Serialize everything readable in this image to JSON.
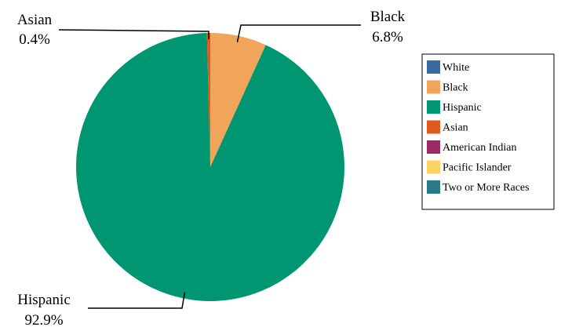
{
  "chart_data": {
    "type": "pie",
    "title": "",
    "categories": [
      "White",
      "Black",
      "Hispanic",
      "Asian",
      "American Indian",
      "Pacific Islander",
      "Two or More Races"
    ],
    "values": [
      0.0,
      6.8,
      92.9,
      0.4,
      0.0,
      0.0,
      0.0
    ],
    "unit": "%",
    "colors": [
      "#3b6aa0",
      "#f0a55a",
      "#009671",
      "#e05a1e",
      "#9e2b66",
      "#fcd463",
      "#2a7a8c"
    ],
    "slice_labels": [
      {
        "category": "Black",
        "name": "Black",
        "value": "6.8%"
      },
      {
        "category": "Hispanic",
        "name": "Hispanic",
        "value": "92.9%"
      },
      {
        "category": "Asian",
        "name": "Asian",
        "value": "0.4%"
      }
    ],
    "legend": {
      "placement": "right",
      "entries": [
        "White",
        "Black",
        "Hispanic",
        "Asian",
        "American Indian",
        "Pacific Islander",
        "Two or More Races"
      ]
    }
  }
}
